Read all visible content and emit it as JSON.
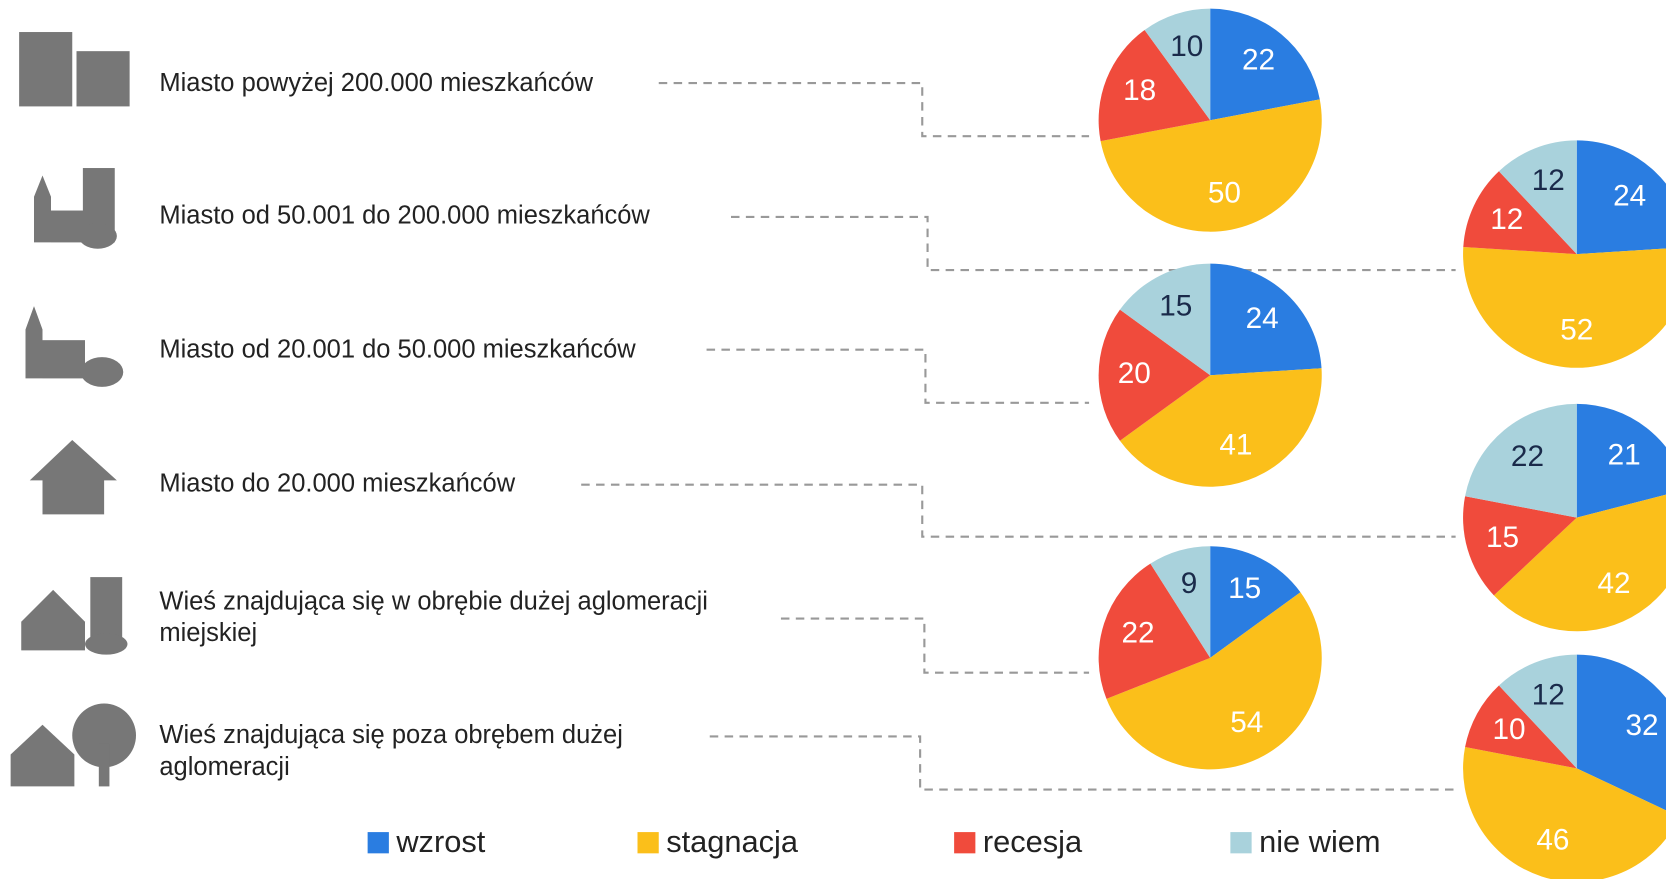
{
  "legend": {
    "categories": [
      "wzrost",
      "stagnacja",
      "recesja",
      "nie wiem"
    ],
    "colors": [
      "#2a7de1",
      "#fbbf1a",
      "#f04b3c",
      "#a9d2dc"
    ]
  },
  "chart_data": [
    {
      "type": "pie",
      "label": [
        "Miasto powyżej 200.000 mieszkańców"
      ],
      "values": [
        22,
        50,
        18,
        10
      ]
    },
    {
      "type": "pie",
      "label": [
        "Miasto od 50.001 do 200.000 mieszkańców"
      ],
      "values": [
        24,
        52,
        12,
        12
      ]
    },
    {
      "type": "pie",
      "label": [
        "Miasto od 20.001 do 50.000 mieszkańców"
      ],
      "values": [
        24,
        41,
        20,
        15
      ]
    },
    {
      "type": "pie",
      "label": [
        "Miasto do 20.000 mieszkańców"
      ],
      "values": [
        21,
        42,
        15,
        22
      ]
    },
    {
      "type": "pie",
      "label": [
        "Wieś znajdująca się w obrębie dużej aglomeracji",
        "miejskiej"
      ],
      "values": [
        15,
        54,
        22,
        9
      ]
    },
    {
      "type": "pie",
      "label": [
        "Wieś znajdująca się poza obrębem dużej",
        "aglomeracji"
      ],
      "values": [
        32,
        46,
        10,
        12
      ]
    }
  ]
}
